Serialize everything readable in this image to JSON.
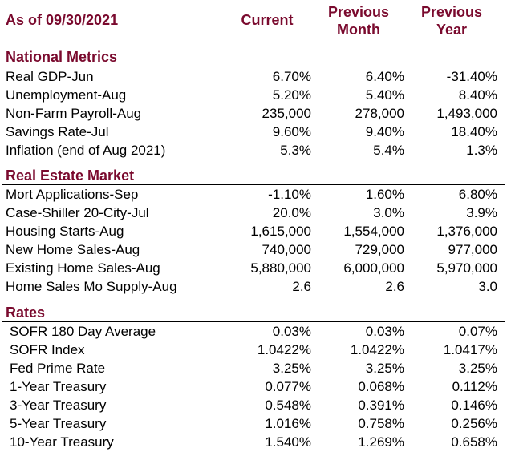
{
  "header": {
    "as_of": "As of 09/30/2021",
    "col_current": "Current",
    "col_prev_month_1": "Previous",
    "col_prev_month_2": "Month",
    "col_prev_year_1": "Previous",
    "col_prev_year_2": "Year"
  },
  "sections": [
    {
      "title": "National Metrics",
      "rows": [
        {
          "label": "Real GDP-Jun",
          "current": "6.70%",
          "prev_month": "6.40%",
          "prev_year": "-31.40%"
        },
        {
          "label": "Unemployment-Aug",
          "current": "5.20%",
          "prev_month": "5.40%",
          "prev_year": "8.40%"
        },
        {
          "label": "Non-Farm Payroll-Aug",
          "current": "235,000",
          "prev_month": "278,000",
          "prev_year": "1,493,000"
        },
        {
          "label": "Savings Rate-Jul",
          "current": "9.60%",
          "prev_month": "9.40%",
          "prev_year": "18.40%"
        },
        {
          "label": "Inflation (end of Aug 2021)",
          "current": "5.3%",
          "prev_month": "5.4%",
          "prev_year": "1.3%"
        }
      ]
    },
    {
      "title": "Real Estate Market",
      "rows": [
        {
          "label": "Mort Applications-Sep",
          "current": "-1.10%",
          "prev_month": "1.60%",
          "prev_year": "6.80%"
        },
        {
          "label": "Case-Shiller 20-City-Jul",
          "current": "20.0%",
          "prev_month": "3.0%",
          "prev_year": "3.9%"
        },
        {
          "label": "Housing Starts-Aug",
          "current": "1,615,000",
          "prev_month": "1,554,000",
          "prev_year": "1,376,000"
        },
        {
          "label": "New Home Sales-Aug",
          "current": "740,000",
          "prev_month": "729,000",
          "prev_year": "977,000"
        },
        {
          "label": "Existing Home Sales-Aug",
          "current": "5,880,000",
          "prev_month": "6,000,000",
          "prev_year": "5,970,000"
        },
        {
          "label": "Home Sales Mo Supply-Aug",
          "current": "2.6",
          "prev_month": "2.6",
          "prev_year": "3.0"
        }
      ]
    },
    {
      "title": "Rates",
      "rows": [
        {
          "label": "SOFR 180 Day Average",
          "current": "0.03%",
          "prev_month": "0.03%",
          "prev_year": "0.07%"
        },
        {
          "label": "SOFR Index",
          "current": "1.0422%",
          "prev_month": "1.0422%",
          "prev_year": "1.0417%"
        },
        {
          "label": "Fed Prime Rate",
          "current": "3.25%",
          "prev_month": "3.25%",
          "prev_year": "3.25%"
        },
        {
          "label": "1-Year Treasury",
          "current": "0.077%",
          "prev_month": "0.068%",
          "prev_year": "0.112%"
        },
        {
          "label": "3-Year Treasury",
          "current": "0.548%",
          "prev_month": "0.391%",
          "prev_year": "0.146%"
        },
        {
          "label": "5-Year Treasury",
          "current": "1.016%",
          "prev_month": "0.758%",
          "prev_year": "0.256%"
        },
        {
          "label": "10-Year Treasury",
          "current": "1.540%",
          "prev_month": "1.269%",
          "prev_year": "0.658%"
        }
      ]
    }
  ]
}
